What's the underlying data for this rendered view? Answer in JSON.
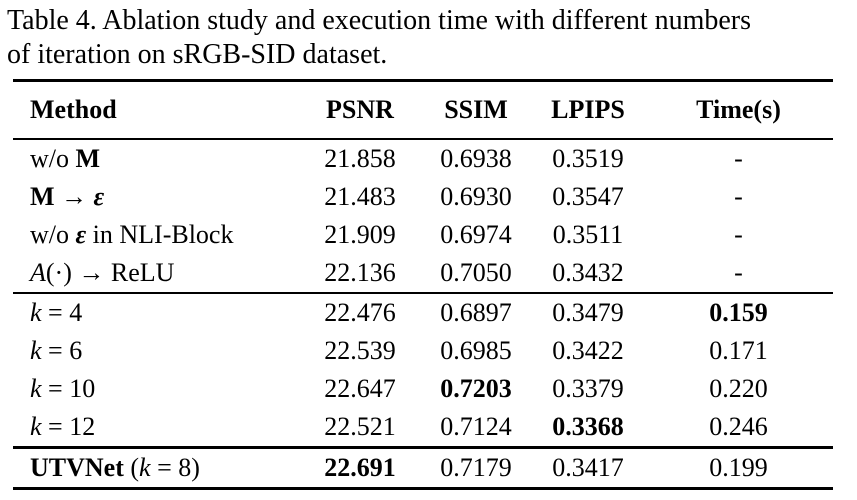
{
  "caption": {
    "lines": [
      "Table 4. Ablation study and execution time with different numbers",
      "of iteration on sRGB-SID dataset."
    ]
  },
  "table": {
    "headers": [
      "Method",
      "PSNR",
      "SSIM",
      "LPIPS",
      "Time(s)"
    ],
    "column_keys": [
      "psnr",
      "ssim",
      "lpips",
      "time"
    ],
    "groups": [
      {
        "rows": [
          {
            "method": [
              {
                "t": "w/o ",
                "s": "r"
              },
              {
                "t": "M",
                "s": "b"
              }
            ],
            "values": [
              {
                "t": "21.858",
                "b": false
              },
              {
                "t": "0.6938",
                "b": false
              },
              {
                "t": "0.3519",
                "b": false
              },
              {
                "t": "-",
                "b": false
              }
            ]
          },
          {
            "method": [
              {
                "t": "M",
                "s": "b"
              },
              {
                "t": " → ",
                "s": "r"
              },
              {
                "t": "ε",
                "s": "bi"
              }
            ],
            "values": [
              {
                "t": "21.483",
                "b": false
              },
              {
                "t": "0.6930",
                "b": false
              },
              {
                "t": "0.3547",
                "b": false
              },
              {
                "t": "-",
                "b": false
              }
            ]
          },
          {
            "method": [
              {
                "t": "w/o ",
                "s": "r"
              },
              {
                "t": "ε",
                "s": "bi"
              },
              {
                "t": " in NLI-Block",
                "s": "r"
              }
            ],
            "values": [
              {
                "t": "21.909",
                "b": false
              },
              {
                "t": "0.6974",
                "b": false
              },
              {
                "t": "0.3511",
                "b": false
              },
              {
                "t": "-",
                "b": false
              }
            ]
          },
          {
            "method": [
              {
                "t": "A",
                "s": "cal"
              },
              {
                "t": "(·) → ReLU",
                "s": "r"
              }
            ],
            "values": [
              {
                "t": "22.136",
                "b": false
              },
              {
                "t": "0.7050",
                "b": false
              },
              {
                "t": "0.3432",
                "b": false
              },
              {
                "t": "-",
                "b": false
              }
            ]
          }
        ]
      },
      {
        "rows": [
          {
            "method": [
              {
                "t": "k",
                "s": "i"
              },
              {
                "t": " = 4",
                "s": "r"
              }
            ],
            "values": [
              {
                "t": "22.476",
                "b": false
              },
              {
                "t": "0.6897",
                "b": false
              },
              {
                "t": "0.3479",
                "b": false
              },
              {
                "t": "0.159",
                "b": true
              }
            ]
          },
          {
            "method": [
              {
                "t": "k",
                "s": "i"
              },
              {
                "t": " = 6",
                "s": "r"
              }
            ],
            "values": [
              {
                "t": "22.539",
                "b": false
              },
              {
                "t": "0.6985",
                "b": false
              },
              {
                "t": "0.3422",
                "b": false
              },
              {
                "t": "0.171",
                "b": false
              }
            ]
          },
          {
            "method": [
              {
                "t": "k",
                "s": "i"
              },
              {
                "t": " = 10",
                "s": "r"
              }
            ],
            "values": [
              {
                "t": "22.647",
                "b": false
              },
              {
                "t": "0.7203",
                "b": true
              },
              {
                "t": "0.3379",
                "b": false
              },
              {
                "t": "0.220",
                "b": false
              }
            ]
          },
          {
            "method": [
              {
                "t": "k",
                "s": "i"
              },
              {
                "t": " = 12",
                "s": "r"
              }
            ],
            "values": [
              {
                "t": "22.521",
                "b": false
              },
              {
                "t": "0.7124",
                "b": false
              },
              {
                "t": "0.3368",
                "b": true
              },
              {
                "t": "0.246",
                "b": false
              }
            ]
          }
        ]
      },
      {
        "rows": [
          {
            "method": [
              {
                "t": "UTVNet",
                "s": "b"
              },
              {
                "t": " (",
                "s": "r"
              },
              {
                "t": "k",
                "s": "i"
              },
              {
                "t": " = 8)",
                "s": "r"
              }
            ],
            "values": [
              {
                "t": "22.691",
                "b": true
              },
              {
                "t": "0.7179",
                "b": false
              },
              {
                "t": "0.3417",
                "b": false
              },
              {
                "t": "0.199",
                "b": false
              }
            ]
          }
        ]
      }
    ]
  },
  "chart_data": {
    "type": "table",
    "title": "Table 4. Ablation study and execution time with different numbers of iteration on sRGB-SID dataset.",
    "columns": [
      "Method",
      "PSNR",
      "SSIM",
      "LPIPS",
      "Time(s)"
    ],
    "rows": [
      [
        "w/o M",
        21.858,
        0.6938,
        0.3519,
        null
      ],
      [
        "M → ε",
        21.483,
        0.693,
        0.3547,
        null
      ],
      [
        "w/o ε in NLI-Block",
        21.909,
        0.6974,
        0.3511,
        null
      ],
      [
        "A(·) → ReLU",
        22.136,
        0.705,
        0.3432,
        null
      ],
      [
        "k = 4",
        22.476,
        0.6897,
        0.3479,
        0.159
      ],
      [
        "k = 6",
        22.539,
        0.6985,
        0.3422,
        0.171
      ],
      [
        "k = 10",
        22.647,
        0.7203,
        0.3379,
        0.22
      ],
      [
        "k = 12",
        22.521,
        0.7124,
        0.3368,
        0.246
      ],
      [
        "UTVNet (k = 8)",
        22.691,
        0.7179,
        0.3417,
        0.199
      ]
    ]
  }
}
